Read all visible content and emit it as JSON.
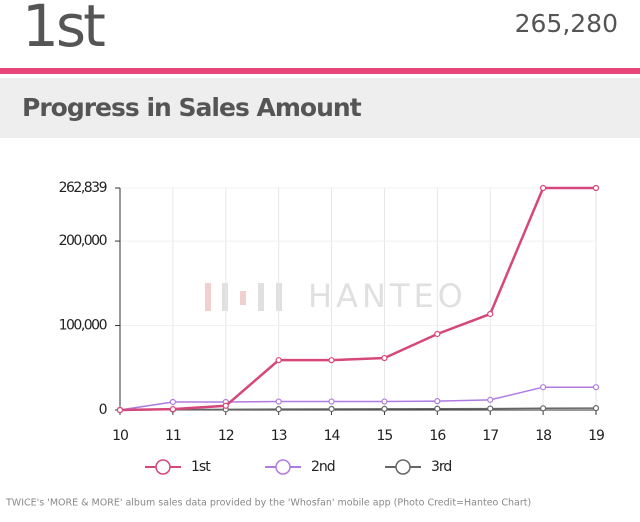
{
  "header": {
    "rank": "1st",
    "total": "265,280"
  },
  "section_title": "Progress in Sales Amount",
  "watermark": "HANTEO",
  "caption": "TWICE's 'MORE & MORE' album sales data provided by the 'Whosfan' mobile app (Photo Credit=Hanteo Chart)",
  "chart_data": {
    "type": "line",
    "x": [
      10,
      11,
      12,
      13,
      14,
      15,
      16,
      17,
      18,
      19
    ],
    "xlim": [
      10,
      19
    ],
    "xticks": [
      10,
      11,
      12,
      13,
      14,
      15,
      16,
      17,
      18,
      19
    ],
    "ylim": [
      0,
      262839
    ],
    "yticks": [
      0,
      {
        "value": 100000,
        "label": "100,000"
      },
      {
        "value": 200000,
        "label": "200,000"
      },
      {
        "value": 262839,
        "label": "262,839"
      }
    ],
    "grid": true,
    "legend": "bottom",
    "series": [
      {
        "name": "1st",
        "color": "#d6477a",
        "values": [
          0,
          1000,
          5000,
          59000,
          59000,
          61500,
          90000,
          113700,
          262839,
          262839
        ]
      },
      {
        "name": "2nd",
        "color": "#b07be0",
        "values": [
          0,
          9500,
          9500,
          10000,
          10000,
          10000,
          10500,
          12000,
          27000,
          27000
        ]
      },
      {
        "name": "3rd",
        "color": "#666666",
        "values": [
          0,
          500,
          800,
          1000,
          1200,
          1300,
          1500,
          1700,
          2000,
          2200
        ]
      }
    ]
  }
}
